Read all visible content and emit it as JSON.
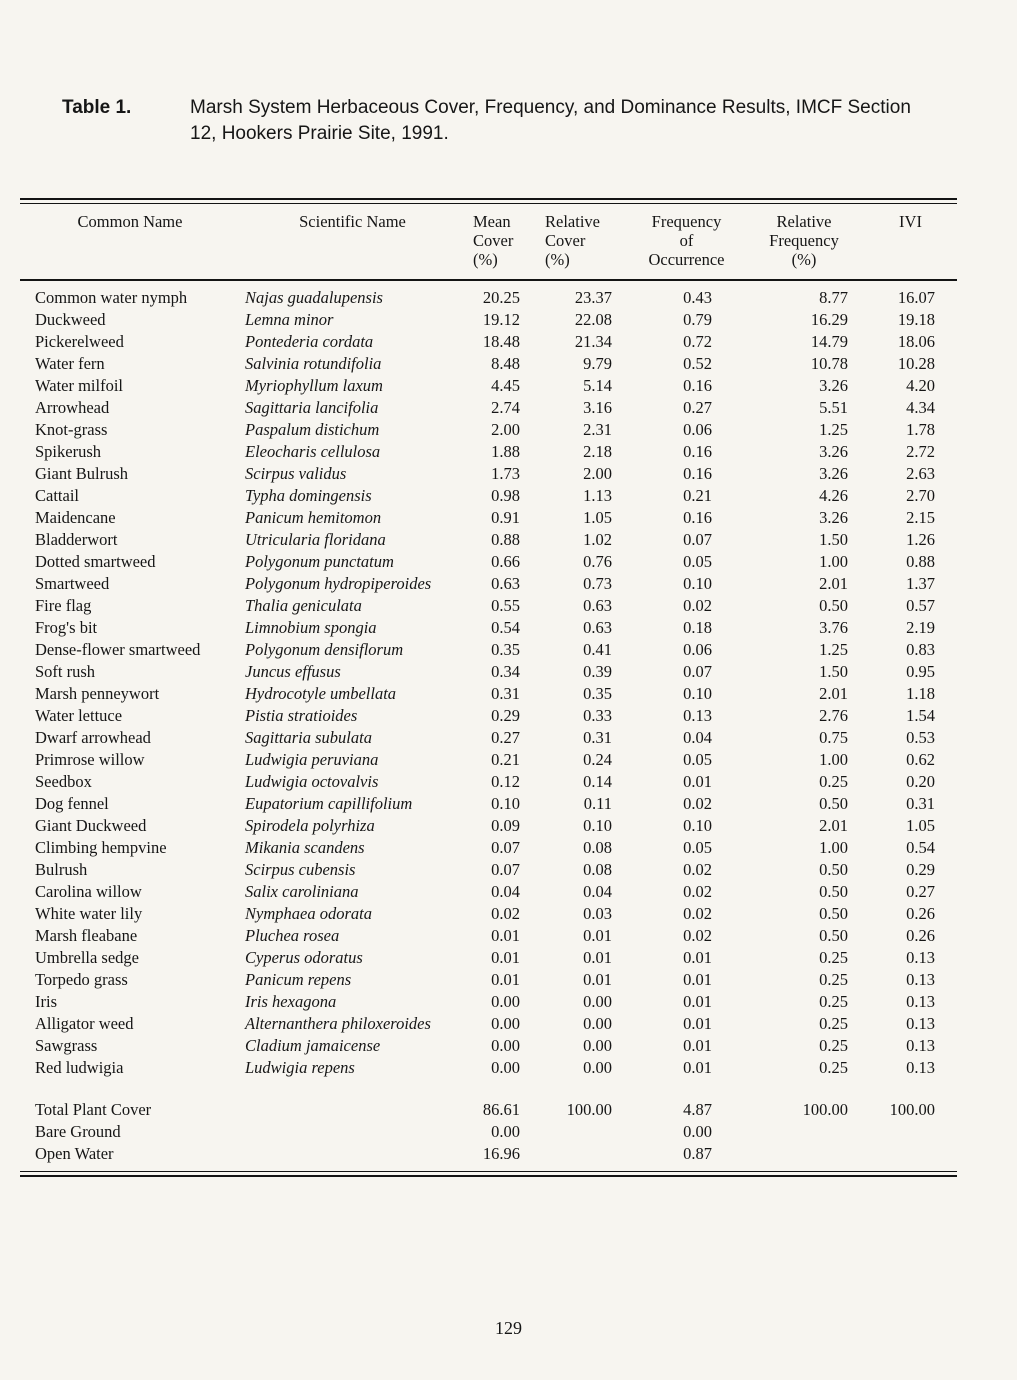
{
  "page": {
    "title_label": "Table 1.",
    "title_text": "Marsh System Herbaceous Cover, Frequency, and Dominance Results, IMCF Section 12, Hookers Prairie Site, 1991.",
    "page_number": "129"
  },
  "table": {
    "headers": [
      "Common Name",
      "Scientific Name",
      "Mean\nCover\n(%)",
      "Relative\nCover\n(%)",
      "Frequency\nof\nOccurrence",
      "Relative\nFrequency\n(%)",
      "IVI"
    ],
    "rows": [
      {
        "common": "Common water nymph",
        "scientific": "Najas guadalupensis",
        "mean_cover": "20.25",
        "rel_cover": "23.37",
        "freq_occ": "0.43",
        "rel_freq": "8.77",
        "ivi": "16.07"
      },
      {
        "common": "Duckweed",
        "scientific": "Lemna minor",
        "mean_cover": "19.12",
        "rel_cover": "22.08",
        "freq_occ": "0.79",
        "rel_freq": "16.29",
        "ivi": "19.18"
      },
      {
        "common": "Pickerelweed",
        "scientific": "Pontederia cordata",
        "mean_cover": "18.48",
        "rel_cover": "21.34",
        "freq_occ": "0.72",
        "rel_freq": "14.79",
        "ivi": "18.06"
      },
      {
        "common": "Water fern",
        "scientific": "Salvinia rotundifolia",
        "mean_cover": "8.48",
        "rel_cover": "9.79",
        "freq_occ": "0.52",
        "rel_freq": "10.78",
        "ivi": "10.28"
      },
      {
        "common": "Water milfoil",
        "scientific": "Myriophyllum laxum",
        "mean_cover": "4.45",
        "rel_cover": "5.14",
        "freq_occ": "0.16",
        "rel_freq": "3.26",
        "ivi": "4.20"
      },
      {
        "common": "Arrowhead",
        "scientific": "Sagittaria lancifolia",
        "mean_cover": "2.74",
        "rel_cover": "3.16",
        "freq_occ": "0.27",
        "rel_freq": "5.51",
        "ivi": "4.34"
      },
      {
        "common": "Knot-grass",
        "scientific": "Paspalum distichum",
        "mean_cover": "2.00",
        "rel_cover": "2.31",
        "freq_occ": "0.06",
        "rel_freq": "1.25",
        "ivi": "1.78"
      },
      {
        "common": "Spikerush",
        "scientific": "Eleocharis cellulosa",
        "mean_cover": "1.88",
        "rel_cover": "2.18",
        "freq_occ": "0.16",
        "rel_freq": "3.26",
        "ivi": "2.72"
      },
      {
        "common": "Giant Bulrush",
        "scientific": "Scirpus validus",
        "mean_cover": "1.73",
        "rel_cover": "2.00",
        "freq_occ": "0.16",
        "rel_freq": "3.26",
        "ivi": "2.63"
      },
      {
        "common": "Cattail",
        "scientific": "Typha domingensis",
        "mean_cover": "0.98",
        "rel_cover": "1.13",
        "freq_occ": "0.21",
        "rel_freq": "4.26",
        "ivi": "2.70"
      },
      {
        "common": "Maidencane",
        "scientific": "Panicum hemitomon",
        "mean_cover": "0.91",
        "rel_cover": "1.05",
        "freq_occ": "0.16",
        "rel_freq": "3.26",
        "ivi": "2.15"
      },
      {
        "common": "Bladderwort",
        "scientific": "Utricularia floridana",
        "mean_cover": "0.88",
        "rel_cover": "1.02",
        "freq_occ": "0.07",
        "rel_freq": "1.50",
        "ivi": "1.26"
      },
      {
        "common": "Dotted smartweed",
        "scientific": "Polygonum punctatum",
        "mean_cover": "0.66",
        "rel_cover": "0.76",
        "freq_occ": "0.05",
        "rel_freq": "1.00",
        "ivi": "0.88"
      },
      {
        "common": "Smartweed",
        "scientific": "Polygonum hydropiperoides",
        "mean_cover": "0.63",
        "rel_cover": "0.73",
        "freq_occ": "0.10",
        "rel_freq": "2.01",
        "ivi": "1.37"
      },
      {
        "common": "Fire flag",
        "scientific": "Thalia geniculata",
        "mean_cover": "0.55",
        "rel_cover": "0.63",
        "freq_occ": "0.02",
        "rel_freq": "0.50",
        "ivi": "0.57"
      },
      {
        "common": "Frog's bit",
        "scientific": "Limnobium spongia",
        "mean_cover": "0.54",
        "rel_cover": "0.63",
        "freq_occ": "0.18",
        "rel_freq": "3.76",
        "ivi": "2.19"
      },
      {
        "common": "Dense-flower smartweed",
        "scientific": "Polygonum densiflorum",
        "mean_cover": "0.35",
        "rel_cover": "0.41",
        "freq_occ": "0.06",
        "rel_freq": "1.25",
        "ivi": "0.83"
      },
      {
        "common": "Soft rush",
        "scientific": "Juncus effusus",
        "mean_cover": "0.34",
        "rel_cover": "0.39",
        "freq_occ": "0.07",
        "rel_freq": "1.50",
        "ivi": "0.95"
      },
      {
        "common": "Marsh penneywort",
        "scientific": "Hydrocotyle umbellata",
        "mean_cover": "0.31",
        "rel_cover": "0.35",
        "freq_occ": "0.10",
        "rel_freq": "2.01",
        "ivi": "1.18"
      },
      {
        "common": "Water lettuce",
        "scientific": "Pistia stratioides",
        "mean_cover": "0.29",
        "rel_cover": "0.33",
        "freq_occ": "0.13",
        "rel_freq": "2.76",
        "ivi": "1.54"
      },
      {
        "common": "Dwarf arrowhead",
        "scientific": "Sagittaria subulata",
        "mean_cover": "0.27",
        "rel_cover": "0.31",
        "freq_occ": "0.04",
        "rel_freq": "0.75",
        "ivi": "0.53"
      },
      {
        "common": "Primrose willow",
        "scientific": "Ludwigia peruviana",
        "mean_cover": "0.21",
        "rel_cover": "0.24",
        "freq_occ": "0.05",
        "rel_freq": "1.00",
        "ivi": "0.62"
      },
      {
        "common": "Seedbox",
        "scientific": "Ludwigia octovalvis",
        "mean_cover": "0.12",
        "rel_cover": "0.14",
        "freq_occ": "0.01",
        "rel_freq": "0.25",
        "ivi": "0.20"
      },
      {
        "common": "Dog fennel",
        "scientific": "Eupatorium capillifolium",
        "mean_cover": "0.10",
        "rel_cover": "0.11",
        "freq_occ": "0.02",
        "rel_freq": "0.50",
        "ivi": "0.31"
      },
      {
        "common": "Giant Duckweed",
        "scientific": "Spirodela polyrhiza",
        "mean_cover": "0.09",
        "rel_cover": "0.10",
        "freq_occ": "0.10",
        "rel_freq": "2.01",
        "ivi": "1.05"
      },
      {
        "common": "Climbing hempvine",
        "scientific": "Mikania scandens",
        "mean_cover": "0.07",
        "rel_cover": "0.08",
        "freq_occ": "0.05",
        "rel_freq": "1.00",
        "ivi": "0.54"
      },
      {
        "common": "Bulrush",
        "scientific": "Scirpus cubensis",
        "mean_cover": "0.07",
        "rel_cover": "0.08",
        "freq_occ": "0.02",
        "rel_freq": "0.50",
        "ivi": "0.29"
      },
      {
        "common": "Carolina willow",
        "scientific": "Salix caroliniana",
        "mean_cover": "0.04",
        "rel_cover": "0.04",
        "freq_occ": "0.02",
        "rel_freq": "0.50",
        "ivi": "0.27"
      },
      {
        "common": "White water lily",
        "scientific": "Nymphaea odorata",
        "mean_cover": "0.02",
        "rel_cover": "0.03",
        "freq_occ": "0.02",
        "rel_freq": "0.50",
        "ivi": "0.26"
      },
      {
        "common": "Marsh fleabane",
        "scientific": "Pluchea rosea",
        "mean_cover": "0.01",
        "rel_cover": "0.01",
        "freq_occ": "0.02",
        "rel_freq": "0.50",
        "ivi": "0.26"
      },
      {
        "common": "Umbrella sedge",
        "scientific": "Cyperus odoratus",
        "mean_cover": "0.01",
        "rel_cover": "0.01",
        "freq_occ": "0.01",
        "rel_freq": "0.25",
        "ivi": "0.13"
      },
      {
        "common": "Torpedo grass",
        "scientific": "Panicum repens",
        "mean_cover": "0.01",
        "rel_cover": "0.01",
        "freq_occ": "0.01",
        "rel_freq": "0.25",
        "ivi": "0.13"
      },
      {
        "common": "Iris",
        "scientific": "Iris hexagona",
        "mean_cover": "0.00",
        "rel_cover": "0.00",
        "freq_occ": "0.01",
        "rel_freq": "0.25",
        "ivi": "0.13"
      },
      {
        "common": "Alligator weed",
        "scientific": "Alternanthera philoxeroides",
        "mean_cover": "0.00",
        "rel_cover": "0.00",
        "freq_occ": "0.01",
        "rel_freq": "0.25",
        "ivi": "0.13"
      },
      {
        "common": "Sawgrass",
        "scientific": "Cladium jamaicense",
        "mean_cover": "0.00",
        "rel_cover": "0.00",
        "freq_occ": "0.01",
        "rel_freq": "0.25",
        "ivi": "0.13"
      },
      {
        "common": "Red ludwigia",
        "scientific": "Ludwigia repens",
        "mean_cover": "0.00",
        "rel_cover": "0.00",
        "freq_occ": "0.01",
        "rel_freq": "0.25",
        "ivi": "0.13"
      }
    ],
    "summary_rows": [
      {
        "common": "Total Plant Cover",
        "scientific": "",
        "mean_cover": "86.61",
        "rel_cover": "100.00",
        "freq_occ": "4.87",
        "rel_freq": "100.00",
        "ivi": "100.00"
      },
      {
        "common": "Bare Ground",
        "scientific": "",
        "mean_cover": "0.00",
        "rel_cover": "",
        "freq_occ": "0.00",
        "rel_freq": "",
        "ivi": ""
      },
      {
        "common": "Open Water",
        "scientific": "",
        "mean_cover": "16.96",
        "rel_cover": "",
        "freq_occ": "0.87",
        "rel_freq": "",
        "ivi": ""
      }
    ]
  }
}
